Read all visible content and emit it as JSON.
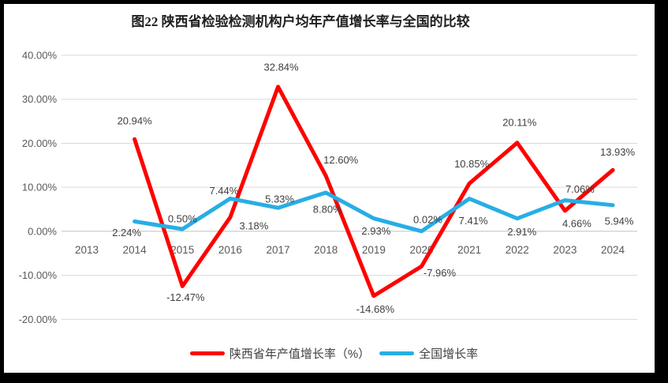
{
  "chart_data": {
    "type": "line",
    "title": "图22  陕西省检验检测机构户均年产值增长率与全国的比较",
    "categories": [
      "2013",
      "2014",
      "2015",
      "2016",
      "2017",
      "2018",
      "2019",
      "2020",
      "2021",
      "2022",
      "2023",
      "2024"
    ],
    "series": [
      {
        "name": "陕西省年产值增长率（%）",
        "color": "#FF0000",
        "values": [
          null,
          20.94,
          -12.47,
          3.18,
          32.84,
          12.6,
          -14.68,
          -7.96,
          10.85,
          20.11,
          4.66,
          13.93
        ],
        "labels": [
          null,
          "20.94%",
          "-12.47%",
          "3.18%",
          "32.84%",
          "12.60%",
          "-14.68%",
          "-7.96%",
          "10.85%",
          "20.11%",
          "4.66%",
          "13.93%"
        ]
      },
      {
        "name": "全国增长率",
        "color": "#27AEE4",
        "values": [
          null,
          2.24,
          0.5,
          7.44,
          5.33,
          8.8,
          2.93,
          0.02,
          7.41,
          2.91,
          7.06,
          5.94
        ],
        "labels": [
          null,
          "2.24%",
          "0.50%",
          "7.44%",
          "5.33%",
          "8.80%",
          "2.93%",
          "0.02%",
          "7.41%",
          "2.91%",
          "7.06%",
          "5.94%"
        ]
      }
    ],
    "ylim": [
      -20,
      40
    ],
    "ytick_step": 10,
    "ytick_labels": [
      "40.00%",
      "30.00%",
      "20.00%",
      "10.00%",
      "0.00%",
      "-10.00%",
      "-20.00%"
    ],
    "xlabel": "",
    "ylabel": "",
    "grid": true,
    "legend_position": "bottom",
    "colors": {
      "grid": "#d9d9d9",
      "zero_line": "#bfbfbf",
      "axis_text": "#595959",
      "data_label_text": "#3f3f3f",
      "frame_border": "#000000"
    }
  }
}
